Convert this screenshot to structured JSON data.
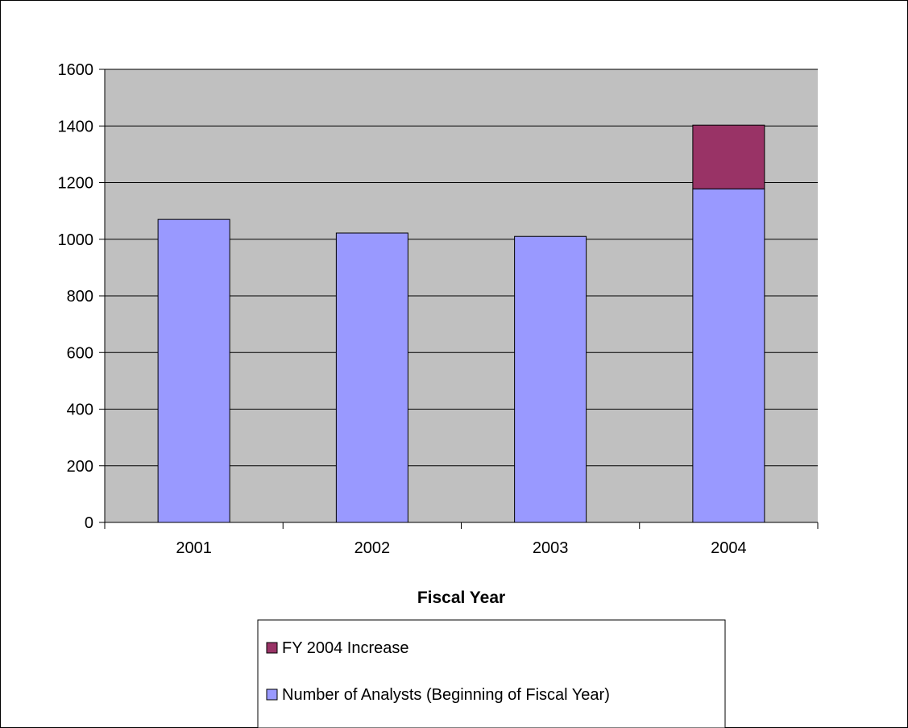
{
  "colors": {
    "plot_background": "#c0c0c0",
    "gridline": "#000000",
    "analysts": "#9999ff",
    "increase": "#993366",
    "bar_border": "#000000"
  },
  "chart_data": {
    "type": "bar",
    "stacked": true,
    "title": "",
    "xlabel": "Fiscal Year",
    "ylabel": "",
    "categories": [
      "2001",
      "2002",
      "2003",
      "2004"
    ],
    "ylim": [
      0,
      1600
    ],
    "yticks": [
      0,
      200,
      400,
      600,
      800,
      1000,
      1200,
      1400,
      1600
    ],
    "grid": true,
    "legend_position": "bottom",
    "series": [
      {
        "name": "Number of Analysts (Beginning of Fiscal Year)",
        "values": [
          1070,
          1022,
          1010,
          1178
        ],
        "color": "#9999ff"
      },
      {
        "name": "FY 2004 Increase",
        "values": [
          0,
          0,
          0,
          225
        ],
        "color": "#993366"
      }
    ],
    "legend_order": [
      1,
      0
    ]
  }
}
